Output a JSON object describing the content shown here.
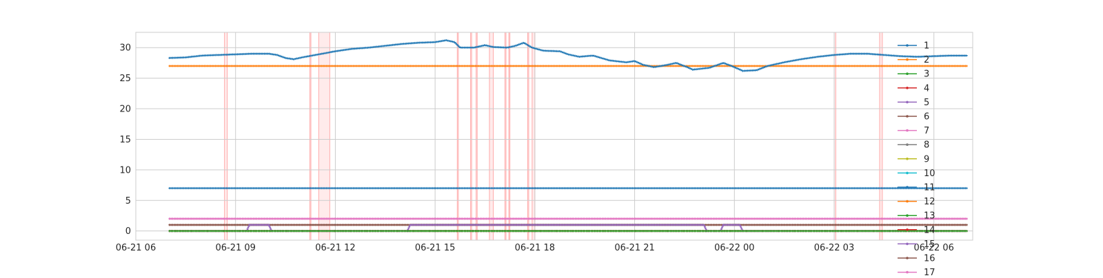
{
  "chart_data": {
    "type": "line",
    "x_axis": {
      "type": "datetime",
      "range": [
        "2025-06-21T06:00",
        "2025-06-22T07:10"
      ],
      "ticks": [
        {
          "x": "2025-06-21T06:00",
          "label": "06-21 06"
        },
        {
          "x": "2025-06-21T09:00",
          "label": "06-21 09"
        },
        {
          "x": "2025-06-21T12:00",
          "label": "06-21 12"
        },
        {
          "x": "2025-06-21T15:00",
          "label": "06-21 15"
        },
        {
          "x": "2025-06-21T18:00",
          "label": "06-21 18"
        },
        {
          "x": "2025-06-21T21:00",
          "label": "06-21 21"
        },
        {
          "x": "2025-06-22T00:00",
          "label": "06-22 00"
        },
        {
          "x": "2025-06-22T03:00",
          "label": "06-22 03"
        },
        {
          "x": "2025-06-22T06:00",
          "label": "06-22 06"
        }
      ]
    },
    "y_axis": {
      "range": [
        -1.5,
        32.5
      ],
      "ticks": [
        {
          "y": 0,
          "label": "0"
        },
        {
          "y": 5,
          "label": "5"
        },
        {
          "y": 10,
          "label": "10"
        },
        {
          "y": 15,
          "label": "15"
        },
        {
          "y": 20,
          "label": "20"
        },
        {
          "y": 25,
          "label": "25"
        },
        {
          "y": 30,
          "label": "30"
        }
      ]
    },
    "grid": true,
    "legend_placement": "top-right (overflowing below plot)",
    "shaded_intervals_color": "#ff0000",
    "shaded_intervals": [
      [
        "2025-06-21T08:40",
        "2025-06-21T08:45"
      ],
      [
        "2025-06-21T11:14",
        "2025-06-21T11:16"
      ],
      [
        "2025-06-21T11:30",
        "2025-06-21T11:50"
      ],
      [
        "2025-06-21T15:40",
        "2025-06-21T15:42"
      ],
      [
        "2025-06-21T16:04",
        "2025-06-21T16:06"
      ],
      [
        "2025-06-21T16:14",
        "2025-06-21T16:16"
      ],
      [
        "2025-06-21T16:38",
        "2025-06-21T16:45"
      ],
      [
        "2025-06-21T17:06",
        "2025-06-21T17:08"
      ],
      [
        "2025-06-21T17:13",
        "2025-06-21T17:15"
      ],
      [
        "2025-06-21T17:47",
        "2025-06-21T17:49"
      ],
      [
        "2025-06-21T17:55",
        "2025-06-21T18:00"
      ],
      [
        "2025-06-22T03:00",
        "2025-06-22T03:03"
      ],
      [
        "2025-06-22T04:22",
        "2025-06-22T04:27"
      ]
    ],
    "series": [
      {
        "name": "1",
        "color": "#1f77b4",
        "points": [
          [
            "2025-06-21T07:00",
            28.3
          ],
          [
            "2025-06-21T07:30",
            28.4
          ],
          [
            "2025-06-21T08:00",
            28.7
          ],
          [
            "2025-06-21T08:30",
            28.8
          ],
          [
            "2025-06-21T09:00",
            28.9
          ],
          [
            "2025-06-21T09:30",
            29.0
          ],
          [
            "2025-06-21T10:00",
            29.0
          ],
          [
            "2025-06-21T10:15",
            28.8
          ],
          [
            "2025-06-21T10:30",
            28.3
          ],
          [
            "2025-06-21T10:45",
            28.1
          ],
          [
            "2025-06-21T11:00",
            28.4
          ],
          [
            "2025-06-21T11:30",
            28.9
          ],
          [
            "2025-06-21T12:00",
            29.4
          ],
          [
            "2025-06-21T12:30",
            29.8
          ],
          [
            "2025-06-21T13:00",
            30.0
          ],
          [
            "2025-06-21T13:30",
            30.3
          ],
          [
            "2025-06-21T14:00",
            30.6
          ],
          [
            "2025-06-21T14:30",
            30.8
          ],
          [
            "2025-06-21T15:00",
            30.9
          ],
          [
            "2025-06-21T15:20",
            31.2
          ],
          [
            "2025-06-21T15:35",
            30.9
          ],
          [
            "2025-06-21T15:45",
            30.0
          ],
          [
            "2025-06-21T16:10",
            30.0
          ],
          [
            "2025-06-21T16:30",
            30.4
          ],
          [
            "2025-06-21T16:45",
            30.1
          ],
          [
            "2025-06-21T17:10",
            30.0
          ],
          [
            "2025-06-21T17:25",
            30.3
          ],
          [
            "2025-06-21T17:40",
            30.8
          ],
          [
            "2025-06-21T17:55",
            30.0
          ],
          [
            "2025-06-21T18:15",
            29.5
          ],
          [
            "2025-06-21T18:45",
            29.4
          ],
          [
            "2025-06-21T19:00",
            28.9
          ],
          [
            "2025-06-21T19:20",
            28.5
          ],
          [
            "2025-06-21T19:45",
            28.7
          ],
          [
            "2025-06-21T20:15",
            27.9
          ],
          [
            "2025-06-21T20:45",
            27.6
          ],
          [
            "2025-06-21T21:00",
            27.8
          ],
          [
            "2025-06-21T21:15",
            27.2
          ],
          [
            "2025-06-21T21:35",
            26.8
          ],
          [
            "2025-06-21T22:00",
            27.2
          ],
          [
            "2025-06-21T22:15",
            27.5
          ],
          [
            "2025-06-21T22:35",
            26.8
          ],
          [
            "2025-06-21T22:45",
            26.4
          ],
          [
            "2025-06-21T23:15",
            26.7
          ],
          [
            "2025-06-21T23:40",
            27.5
          ],
          [
            "2025-06-21T23:55",
            27.0
          ],
          [
            "2025-06-22T00:15",
            26.2
          ],
          [
            "2025-06-22T00:40",
            26.3
          ],
          [
            "2025-06-22T01:00",
            27.0
          ],
          [
            "2025-06-22T01:30",
            27.6
          ],
          [
            "2025-06-22T02:00",
            28.1
          ],
          [
            "2025-06-22T02:30",
            28.5
          ],
          [
            "2025-06-22T03:00",
            28.8
          ],
          [
            "2025-06-22T03:30",
            29.0
          ],
          [
            "2025-06-22T04:00",
            29.0
          ],
          [
            "2025-06-22T04:30",
            28.8
          ],
          [
            "2025-06-22T05:00",
            28.6
          ],
          [
            "2025-06-22T05:30",
            28.5
          ],
          [
            "2025-06-22T06:00",
            28.6
          ],
          [
            "2025-06-22T06:30",
            28.7
          ],
          [
            "2025-06-22T07:00",
            28.7
          ]
        ]
      },
      {
        "name": "2",
        "color": "#ff7f0e",
        "points": [
          [
            "2025-06-21T07:00",
            27.0
          ],
          [
            "2025-06-22T07:00",
            27.0
          ]
        ]
      },
      {
        "name": "3",
        "color": "#2ca02c",
        "points": [
          [
            "2025-06-21T07:00",
            0.0
          ],
          [
            "2025-06-22T07:00",
            0.0
          ]
        ]
      },
      {
        "name": "4",
        "color": "#d62728",
        "points": [
          [
            "2025-06-21T07:00",
            0.0
          ],
          [
            "2025-06-22T07:00",
            0.0
          ]
        ]
      },
      {
        "name": "5",
        "color": "#9467bd",
        "points": [
          [
            "2025-06-21T07:00",
            0.0
          ],
          [
            "2025-06-21T09:20",
            0.0
          ],
          [
            "2025-06-21T09:25",
            1.0
          ],
          [
            "2025-06-21T10:00",
            1.0
          ],
          [
            "2025-06-21T10:05",
            0.0
          ],
          [
            "2025-06-21T14:10",
            0.0
          ],
          [
            "2025-06-21T14:15",
            1.0
          ],
          [
            "2025-06-21T23:05",
            1.0
          ],
          [
            "2025-06-21T23:10",
            0.0
          ],
          [
            "2025-06-21T23:35",
            0.0
          ],
          [
            "2025-06-21T23:40",
            1.0
          ],
          [
            "2025-06-22T00:10",
            1.0
          ],
          [
            "2025-06-22T00:15",
            0.0
          ],
          [
            "2025-06-22T07:00",
            0.0
          ]
        ]
      },
      {
        "name": "6",
        "color": "#8c564b",
        "points": [
          [
            "2025-06-21T07:00",
            1.0
          ],
          [
            "2025-06-22T07:00",
            1.0
          ]
        ]
      },
      {
        "name": "7",
        "color": "#e377c2",
        "points": [
          [
            "2025-06-21T07:00",
            2.0
          ],
          [
            "2025-06-22T07:00",
            2.0
          ]
        ]
      },
      {
        "name": "8",
        "color": "#7f7f7f",
        "points": [
          [
            "2025-06-21T07:00",
            0.0
          ],
          [
            "2025-06-22T07:00",
            0.0
          ]
        ]
      },
      {
        "name": "9",
        "color": "#bcbd22",
        "points": [
          [
            "2025-06-21T07:00",
            0.0
          ],
          [
            "2025-06-22T07:00",
            0.0
          ]
        ]
      },
      {
        "name": "10",
        "color": "#17becf",
        "points": [
          [
            "2025-06-21T07:00",
            0.0
          ],
          [
            "2025-06-22T07:00",
            0.0
          ]
        ]
      },
      {
        "name": "11",
        "color": "#1f77b4",
        "points": [
          [
            "2025-06-21T07:00",
            7.0
          ],
          [
            "2025-06-22T07:00",
            7.0
          ]
        ]
      },
      {
        "name": "12",
        "color": "#ff7f0e",
        "points": [
          [
            "2025-06-21T07:00",
            0.0
          ],
          [
            "2025-06-22T07:00",
            0.0
          ]
        ]
      },
      {
        "name": "13",
        "color": "#2ca02c",
        "points": [
          [
            "2025-06-21T07:00",
            0.0
          ],
          [
            "2025-06-22T07:00",
            0.0
          ]
        ]
      },
      {
        "name": "14",
        "color": "#d62728",
        "points": [
          [
            "2025-06-21T07:00",
            0.0
          ],
          [
            "2025-06-22T07:00",
            0.0
          ]
        ]
      },
      {
        "name": "15",
        "color": "#9467bd",
        "points": [
          [
            "2025-06-21T07:00",
            0.0
          ],
          [
            "2025-06-22T07:00",
            0.0
          ]
        ]
      },
      {
        "name": "16",
        "color": "#8c564b",
        "points": [
          [
            "2025-06-21T07:00",
            1.0
          ],
          [
            "2025-06-22T07:00",
            1.0
          ]
        ]
      },
      {
        "name": "17",
        "color": "#e377c2",
        "points": [
          [
            "2025-06-21T07:00",
            2.0
          ],
          [
            "2025-06-22T07:00",
            2.0
          ]
        ]
      }
    ]
  }
}
